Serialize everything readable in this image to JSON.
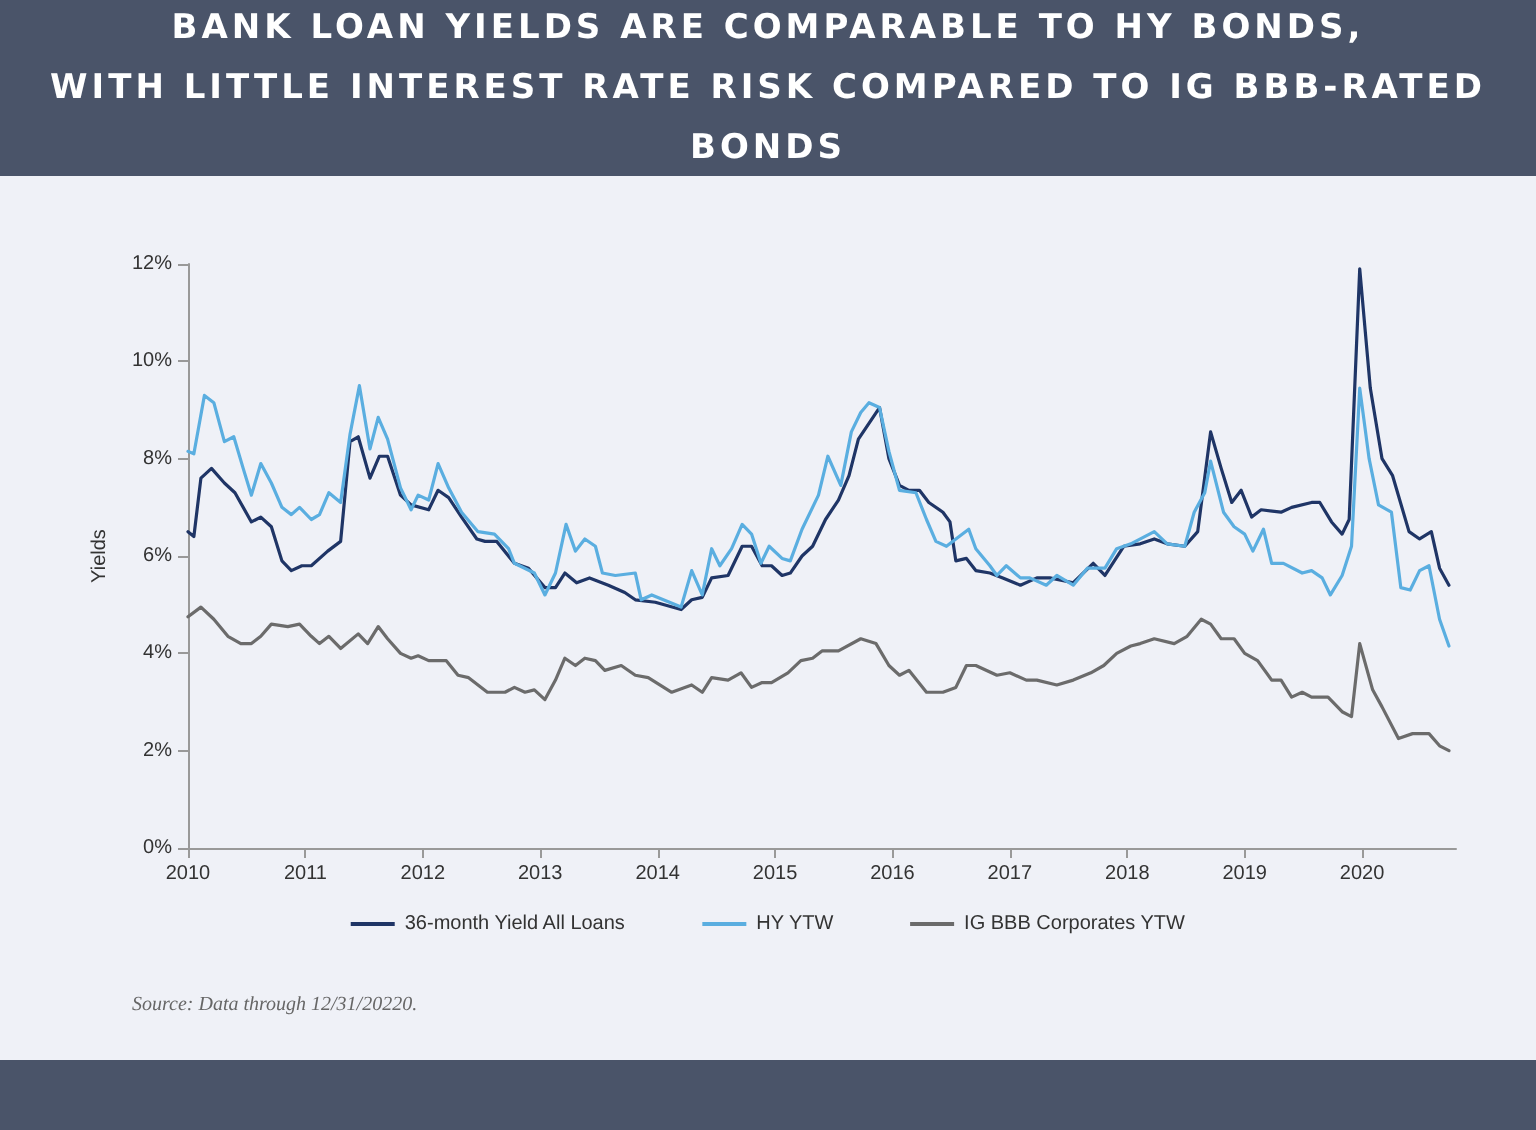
{
  "chart_data": {
    "type": "line",
    "title": "BANK LOAN YIELDS ARE COMPARABLE TO HY BONDS,\nWITH LITTLE INTEREST RATE RISK COMPARED TO IG BBB-RATED BONDS",
    "ylabel": "Yields",
    "annotations": [
      "Source: Data through 12/31/20220."
    ],
    "xlim": [
      2010,
      2020.8
    ],
    "xticks": [
      2010,
      2011,
      2012,
      2013,
      2014,
      2015,
      2016,
      2017,
      2018,
      2019,
      2020
    ],
    "ylim": [
      0,
      12
    ],
    "yticks": [
      {
        "value": 0,
        "label": "0%"
      },
      {
        "value": 2,
        "label": "2%"
      },
      {
        "value": 4,
        "label": "4%"
      },
      {
        "value": 6,
        "label": "6%"
      },
      {
        "value": 8,
        "label": "8%"
      },
      {
        "value": 10,
        "label": "10%"
      },
      {
        "value": 12,
        "label": "12%"
      }
    ],
    "grid": false,
    "legend": "bottom",
    "marker": "none",
    "line_style": "solid",
    "series": [
      {
        "name": "36-month Yield All Loans",
        "color": "#1f3566",
        "x": [
          2010.0,
          2010.05,
          2010.11,
          2010.2,
          2010.31,
          2010.4,
          2010.54,
          2010.62,
          2010.71,
          2010.8,
          2010.88,
          2010.97,
          2011.05,
          2011.19,
          2011.3,
          2011.38,
          2011.45,
          2011.55,
          2011.63,
          2011.7,
          2011.81,
          2011.9,
          2012.05,
          2012.13,
          2012.22,
          2012.33,
          2012.46,
          2012.53,
          2012.63,
          2012.78,
          2012.9,
          2013.04,
          2013.13,
          2013.21,
          2013.31,
          2013.42,
          2013.58,
          2013.72,
          2013.81,
          2013.98,
          2014.2,
          2014.29,
          2014.38,
          2014.46,
          2014.6,
          2014.72,
          2014.8,
          2014.89,
          2014.97,
          2015.06,
          2015.13,
          2015.23,
          2015.32,
          2015.43,
          2015.54,
          2015.63,
          2015.71,
          2015.89,
          2015.97,
          2016.06,
          2016.14,
          2016.23,
          2016.31,
          2016.43,
          2016.49,
          2016.54,
          2016.63,
          2016.71,
          2016.83,
          2016.94,
          2017.09,
          2017.23,
          2017.34,
          2017.54,
          2017.71,
          2017.81,
          2017.97,
          2018.11,
          2018.23,
          2018.34,
          2018.49,
          2018.6,
          2018.71,
          2018.8,
          2018.89,
          2018.97,
          2019.06,
          2019.14,
          2019.31,
          2019.4,
          2019.57,
          2019.64,
          2019.74,
          2019.83,
          2019.89,
          2019.98,
          2020.07,
          2020.17,
          2020.26,
          2020.4,
          2020.49,
          2020.59,
          2020.66,
          2020.74
        ],
        "values": [
          6.5,
          6.4,
          7.6,
          7.8,
          7.5,
          7.3,
          6.7,
          6.8,
          6.6,
          5.9,
          5.7,
          5.8,
          5.8,
          6.1,
          6.3,
          8.35,
          8.45,
          7.6,
          8.05,
          8.05,
          7.25,
          7.05,
          6.95,
          7.35,
          7.2,
          6.8,
          6.35,
          6.3,
          6.3,
          5.85,
          5.75,
          5.35,
          5.35,
          5.65,
          5.45,
          5.55,
          5.4,
          5.25,
          5.1,
          5.05,
          4.9,
          5.1,
          5.15,
          5.55,
          5.6,
          6.2,
          6.2,
          5.8,
          5.8,
          5.6,
          5.65,
          6.0,
          6.2,
          6.75,
          7.15,
          7.65,
          8.4,
          9.05,
          8.0,
          7.45,
          7.35,
          7.35,
          7.1,
          6.9,
          6.7,
          5.9,
          5.95,
          5.7,
          5.65,
          5.55,
          5.4,
          5.55,
          5.55,
          5.45,
          5.85,
          5.6,
          6.2,
          6.25,
          6.35,
          6.25,
          6.2,
          6.5,
          8.55,
          7.8,
          7.1,
          7.35,
          6.8,
          6.95,
          6.9,
          7.0,
          7.1,
          7.1,
          6.7,
          6.45,
          6.75,
          11.9,
          9.45,
          8.0,
          7.65,
          6.5,
          6.35,
          6.5,
          5.75,
          5.4
        ]
      },
      {
        "name": "HY YTW",
        "color": "#5aaee0",
        "x": [
          2010.0,
          2010.05,
          2010.14,
          2010.22,
          2010.31,
          2010.39,
          2010.47,
          2010.54,
          2010.62,
          2010.71,
          2010.8,
          2010.88,
          2010.95,
          2011.05,
          2011.12,
          2011.2,
          2011.3,
          2011.38,
          2011.46,
          2011.55,
          2011.62,
          2011.7,
          2011.81,
          2011.9,
          2011.96,
          2012.05,
          2012.13,
          2012.22,
          2012.33,
          2012.47,
          2012.61,
          2012.73,
          2012.78,
          2012.95,
          2013.04,
          2013.13,
          2013.22,
          2013.3,
          2013.38,
          2013.47,
          2013.53,
          2013.64,
          2013.81,
          2013.86,
          2013.95,
          2014.2,
          2014.29,
          2014.38,
          2014.46,
          2014.53,
          2014.63,
          2014.72,
          2014.8,
          2014.88,
          2014.95,
          2015.06,
          2015.13,
          2015.23,
          2015.37,
          2015.45,
          2015.56,
          2015.65,
          2015.73,
          2015.8,
          2015.89,
          2015.97,
          2016.06,
          2016.2,
          2016.29,
          2016.37,
          2016.46,
          2016.54,
          2016.65,
          2016.71,
          2016.83,
          2016.89,
          2016.97,
          2017.09,
          2017.17,
          2017.31,
          2017.4,
          2017.54,
          2017.66,
          2017.81,
          2017.91,
          2018.03,
          2018.23,
          2018.34,
          2018.49,
          2018.57,
          2018.66,
          2018.71,
          2018.82,
          2018.91,
          2019.0,
          2019.07,
          2019.16,
          2019.23,
          2019.33,
          2019.49,
          2019.57,
          2019.66,
          2019.73,
          2019.83,
          2019.91,
          2019.98,
          2020.06,
          2020.14,
          2020.25,
          2020.33,
          2020.41,
          2020.49,
          2020.57,
          2020.66,
          2020.74
        ],
        "values": [
          8.15,
          8.1,
          9.3,
          9.15,
          8.35,
          8.45,
          7.8,
          7.25,
          7.9,
          7.5,
          7.0,
          6.85,
          7.0,
          6.75,
          6.85,
          7.3,
          7.1,
          8.5,
          9.5,
          8.2,
          8.85,
          8.4,
          7.4,
          6.95,
          7.25,
          7.15,
          7.9,
          7.4,
          6.9,
          6.5,
          6.45,
          6.15,
          5.85,
          5.65,
          5.2,
          5.65,
          6.65,
          6.1,
          6.35,
          6.2,
          5.65,
          5.6,
          5.65,
          5.1,
          5.2,
          4.95,
          5.7,
          5.2,
          6.15,
          5.8,
          6.15,
          6.65,
          6.45,
          5.85,
          6.2,
          5.95,
          5.9,
          6.55,
          7.25,
          8.05,
          7.45,
          8.55,
          8.95,
          9.15,
          9.05,
          8.15,
          7.35,
          7.3,
          6.75,
          6.3,
          6.2,
          6.35,
          6.55,
          6.15,
          5.8,
          5.6,
          5.8,
          5.55,
          5.55,
          5.4,
          5.6,
          5.4,
          5.75,
          5.75,
          6.15,
          6.25,
          6.5,
          6.25,
          6.2,
          6.9,
          7.3,
          7.95,
          6.9,
          6.6,
          6.45,
          6.1,
          6.55,
          5.85,
          5.85,
          5.65,
          5.7,
          5.55,
          5.2,
          5.6,
          6.2,
          9.45,
          8.0,
          7.05,
          6.9,
          5.35,
          5.3,
          5.7,
          5.8,
          4.7,
          4.15
        ]
      },
      {
        "name": "IG BBB Corporates YTW",
        "color": "#6b6b6b",
        "x": [
          2010.0,
          2010.11,
          2010.22,
          2010.34,
          2010.45,
          2010.54,
          2010.62,
          2010.71,
          2010.85,
          2010.95,
          2011.05,
          2011.12,
          2011.2,
          2011.3,
          2011.45,
          2011.53,
          2011.62,
          2011.7,
          2011.81,
          2011.9,
          2011.96,
          2012.05,
          2012.2,
          2012.3,
          2012.39,
          2012.55,
          2012.7,
          2012.78,
          2012.87,
          2012.95,
          2013.04,
          2013.13,
          2013.21,
          2013.3,
          2013.38,
          2013.47,
          2013.55,
          2013.69,
          2013.81,
          2013.92,
          2014.12,
          2014.29,
          2014.38,
          2014.46,
          2014.6,
          2014.71,
          2014.8,
          2014.89,
          2014.97,
          2015.11,
          2015.22,
          2015.32,
          2015.4,
          2015.54,
          2015.73,
          2015.86,
          2015.97,
          2016.06,
          2016.14,
          2016.29,
          2016.43,
          2016.54,
          2016.63,
          2016.71,
          2016.89,
          2017.0,
          2017.14,
          2017.23,
          2017.4,
          2017.54,
          2017.69,
          2017.8,
          2017.91,
          2018.03,
          2018.11,
          2018.23,
          2018.4,
          2018.51,
          2018.63,
          2018.71,
          2018.8,
          2018.91,
          2019.0,
          2019.11,
          2019.23,
          2019.31,
          2019.4,
          2019.49,
          2019.57,
          2019.71,
          2019.83,
          2019.91,
          2019.98,
          2020.09,
          2020.17,
          2020.31,
          2020.43,
          2020.57,
          2020.66,
          2020.74
        ],
        "values": [
          4.75,
          4.95,
          4.7,
          4.35,
          4.2,
          4.2,
          4.35,
          4.6,
          4.55,
          4.6,
          4.35,
          4.2,
          4.35,
          4.1,
          4.4,
          4.2,
          4.55,
          4.3,
          4.0,
          3.9,
          3.95,
          3.85,
          3.85,
          3.55,
          3.5,
          3.2,
          3.2,
          3.3,
          3.2,
          3.25,
          3.05,
          3.45,
          3.9,
          3.75,
          3.9,
          3.85,
          3.65,
          3.75,
          3.55,
          3.5,
          3.2,
          3.35,
          3.2,
          3.5,
          3.45,
          3.6,
          3.3,
          3.4,
          3.4,
          3.6,
          3.85,
          3.9,
          4.05,
          4.05,
          4.3,
          4.2,
          3.75,
          3.55,
          3.65,
          3.2,
          3.2,
          3.3,
          3.75,
          3.75,
          3.55,
          3.6,
          3.45,
          3.45,
          3.35,
          3.45,
          3.6,
          3.75,
          4.0,
          4.15,
          4.2,
          4.3,
          4.2,
          4.35,
          4.7,
          4.6,
          4.3,
          4.3,
          4.0,
          3.85,
          3.45,
          3.45,
          3.1,
          3.2,
          3.1,
          3.1,
          2.8,
          2.7,
          4.2,
          3.25,
          2.9,
          2.25,
          2.35,
          2.35,
          2.1,
          2.0
        ]
      }
    ]
  }
}
